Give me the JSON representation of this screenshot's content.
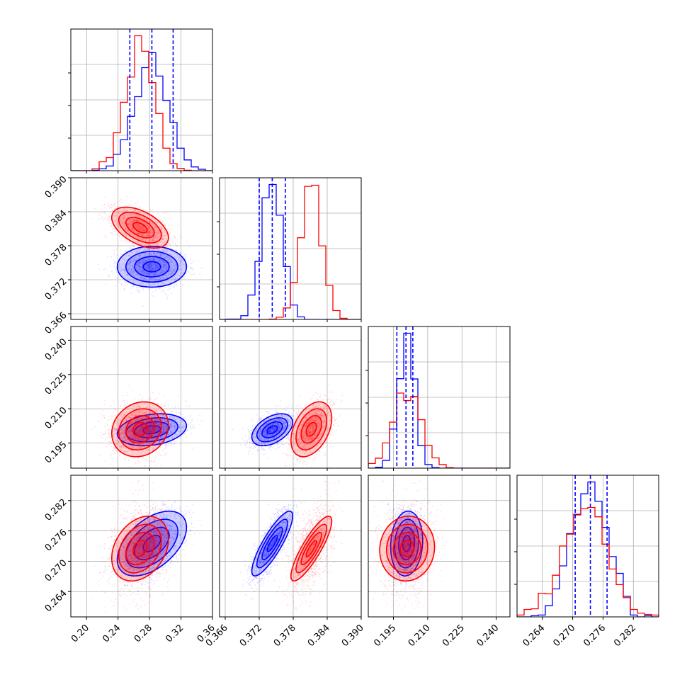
{
  "chart_data": {
    "type": "scatter",
    "variables": [
      {
        "key": "p1",
        "range": [
          0.18,
          0.36
        ],
        "ticks": [
          "0.20",
          "0.24",
          "0.28",
          "0.32",
          "0.36"
        ],
        "tick_values": [
          0.2,
          0.24,
          0.28,
          0.32,
          0.36
        ]
      },
      {
        "key": "p2",
        "range": [
          0.365,
          0.39
        ],
        "ticks": [
          "0.366",
          "0.372",
          "0.378",
          "0.384",
          "0.390"
        ],
        "tick_values": [
          0.366,
          0.372,
          0.378,
          0.384,
          0.39
        ]
      },
      {
        "key": "p3",
        "range": [
          0.184,
          0.246
        ],
        "ticks": [
          "0.195",
          "0.210",
          "0.225",
          "0.240"
        ],
        "tick_values": [
          0.195,
          0.21,
          0.225,
          0.24
        ]
      },
      {
        "key": "p4",
        "range": [
          0.259,
          0.287
        ],
        "ticks": [
          "0.264",
          "0.270",
          "0.276",
          "0.282"
        ],
        "tick_values": [
          0.264,
          0.27,
          0.276,
          0.282
        ]
      }
    ],
    "series": [
      {
        "color": "#0000ff",
        "mean": [
          0.283,
          0.3743,
          0.2008,
          0.2735
        ],
        "std": [
          0.022,
          0.0018,
          0.0035,
          0.0032
        ],
        "corr": [
          [
            1,
            0.0,
            0.25,
            0.5
          ],
          [
            0.0,
            1,
            0.45,
            0.85
          ],
          [
            0.25,
            0.45,
            1,
            0.1
          ],
          [
            0.5,
            0.85,
            0.1,
            1
          ]
        ],
        "quantile_lines": [
          [
            0.255,
            0.283,
            0.31
          ],
          [
            0.372,
            0.3743,
            0.3766
          ],
          [
            0.1965,
            0.2005,
            0.2035
          ],
          [
            0.2705,
            0.2735,
            0.2768
          ]
        ]
      },
      {
        "color": "#ff0000",
        "mean": [
          0.268,
          0.3812,
          0.201,
          0.2725
        ],
        "std": [
          0.018,
          0.0018,
          0.006,
          0.0032
        ],
        "corr": [
          [
            1,
            -0.5,
            0.15,
            0.3
          ],
          [
            -0.5,
            1,
            0.4,
            0.85
          ],
          [
            0.15,
            0.4,
            1,
            0.05
          ],
          [
            0.3,
            0.85,
            0.05,
            1
          ]
        ]
      }
    ],
    "grid": true
  }
}
